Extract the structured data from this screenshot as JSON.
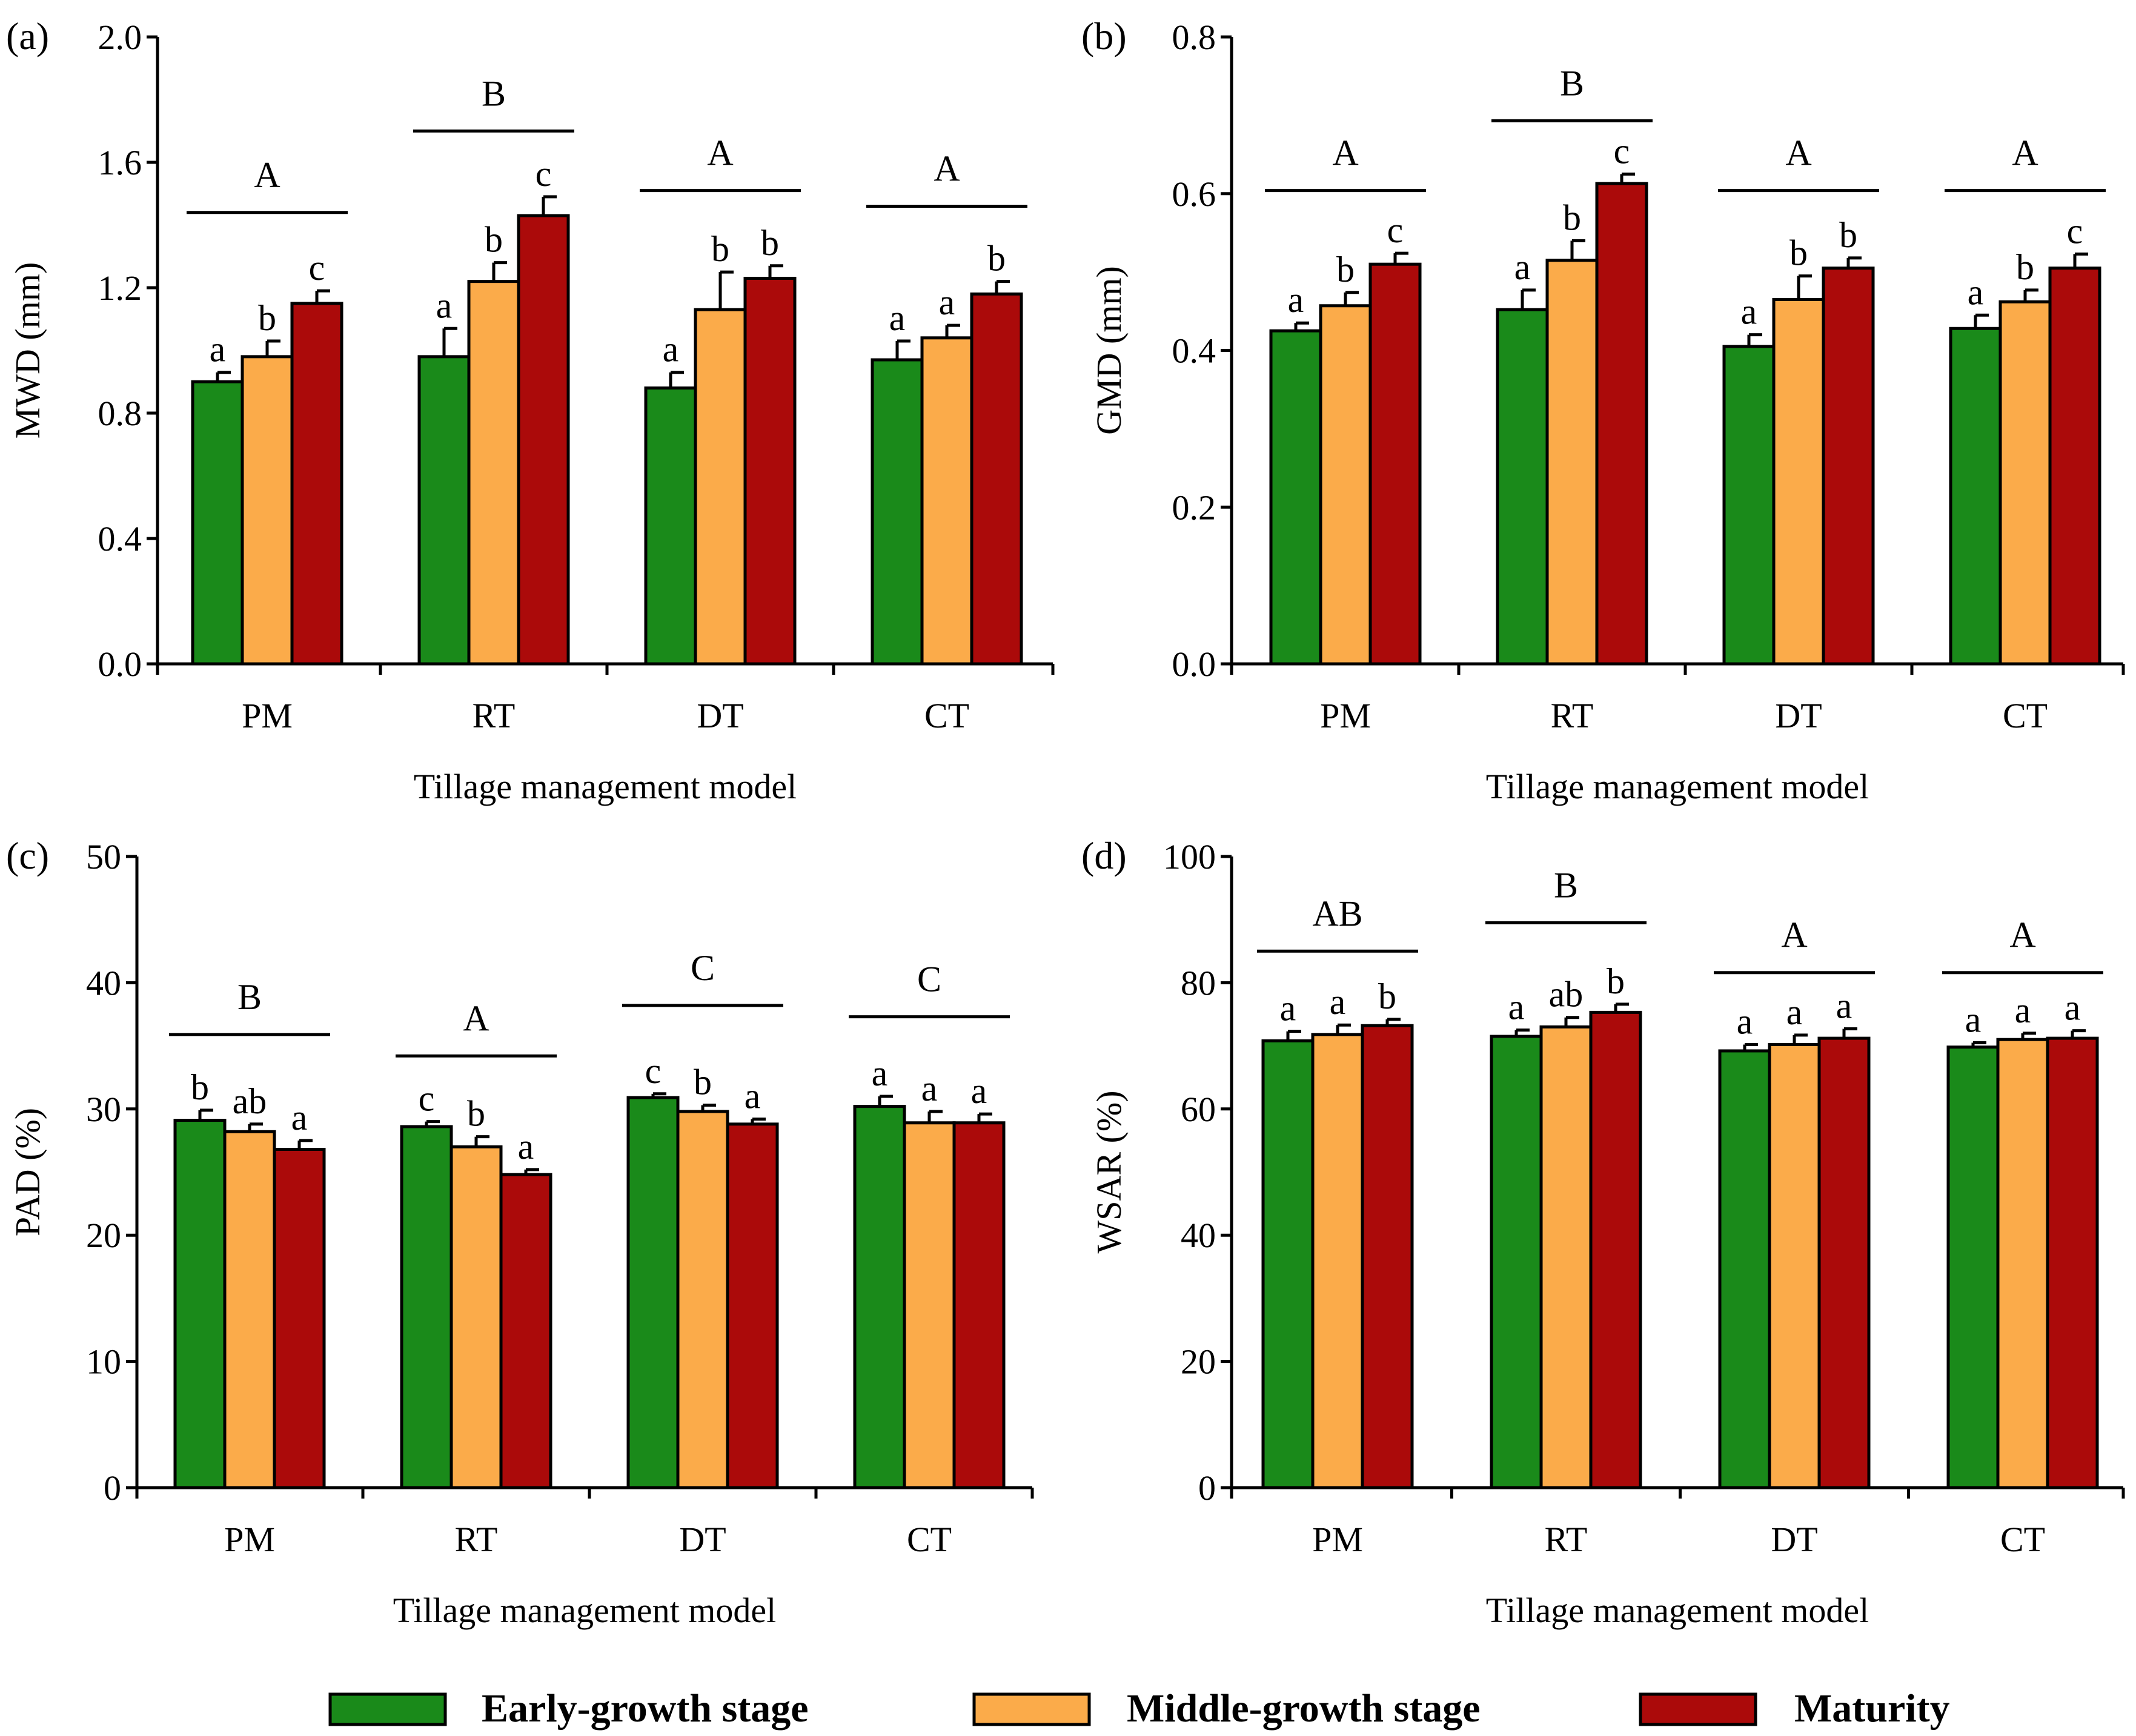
{
  "colors": {
    "early": "#1a8a1a",
    "middle": "#fbab4a",
    "maturity": "#ab0a0a",
    "axis": "#000000"
  },
  "legend": {
    "early": "Early-growth stage",
    "middle": "Middle-growth stage",
    "maturity": "Maturity"
  },
  "chart_data": [
    {
      "panel": "(a)",
      "type": "bar",
      "ylabel": "MWD (mm)",
      "xlabel": "Tillage management model",
      "ylim": [
        0,
        2.0
      ],
      "yticks": [
        0.0,
        0.4,
        0.8,
        1.2,
        1.6,
        2.0
      ],
      "ytick_labels": [
        "0.0",
        "0.4",
        "0.8",
        "1.2",
        "1.6",
        "2.0"
      ],
      "categories": [
        "PM",
        "RT",
        "DT",
        "CT"
      ],
      "series": [
        {
          "name": "Early-growth stage",
          "values": [
            0.9,
            0.98,
            0.88,
            0.97
          ],
          "errors": [
            0.03,
            0.09,
            0.05,
            0.06
          ],
          "letters": [
            "a",
            "a",
            "a",
            "a"
          ]
        },
        {
          "name": "Middle-growth stage",
          "values": [
            0.98,
            1.22,
            1.13,
            1.04
          ],
          "errors": [
            0.05,
            0.06,
            0.12,
            0.04
          ],
          "letters": [
            "b",
            "b",
            "b",
            "a"
          ]
        },
        {
          "name": "Maturity",
          "values": [
            1.15,
            1.43,
            1.23,
            1.18
          ],
          "errors": [
            0.04,
            0.06,
            0.04,
            0.04
          ],
          "letters": [
            "c",
            "c",
            "b",
            "b"
          ]
        }
      ],
      "group_letters": [
        "A",
        "B",
        "A",
        "A"
      ],
      "group_line_values": [
        1.44,
        1.7,
        1.51,
        1.46
      ]
    },
    {
      "panel": "(b)",
      "type": "bar",
      "ylabel": "GMD (mm)",
      "xlabel": "Tillage management model",
      "ylim": [
        0,
        0.8
      ],
      "yticks": [
        0.0,
        0.2,
        0.4,
        0.6,
        0.8
      ],
      "ytick_labels": [
        "0.0",
        "0.2",
        "0.4",
        "0.6",
        "0.8"
      ],
      "categories": [
        "PM",
        "RT",
        "DT",
        "CT"
      ],
      "series": [
        {
          "name": "Early-growth stage",
          "values": [
            0.425,
            0.452,
            0.405,
            0.428
          ],
          "errors": [
            0.01,
            0.025,
            0.015,
            0.017
          ],
          "letters": [
            "a",
            "a",
            "a",
            "a"
          ]
        },
        {
          "name": "Middle-growth stage",
          "values": [
            0.457,
            0.515,
            0.465,
            0.462
          ],
          "errors": [
            0.017,
            0.025,
            0.03,
            0.015
          ],
          "letters": [
            "b",
            "b",
            "b",
            "b"
          ]
        },
        {
          "name": "Maturity",
          "values": [
            0.51,
            0.613,
            0.505,
            0.505
          ],
          "errors": [
            0.014,
            0.012,
            0.013,
            0.018
          ],
          "letters": [
            "c",
            "c",
            "b",
            "c"
          ]
        }
      ],
      "group_letters": [
        "A",
        "B",
        "A",
        "A"
      ],
      "group_line_values": [
        0.604,
        0.693,
        0.604,
        0.604
      ]
    },
    {
      "panel": "(c)",
      "type": "bar",
      "ylabel": "PAD (%)",
      "xlabel": "Tillage management model",
      "ylim": [
        0,
        50
      ],
      "yticks": [
        0,
        10,
        20,
        30,
        40,
        50
      ],
      "ytick_labels": [
        "0",
        "10",
        "20",
        "30",
        "40",
        "50"
      ],
      "categories": [
        "PM",
        "RT",
        "DT",
        "CT"
      ],
      "series": [
        {
          "name": "Early-growth stage",
          "values": [
            29.1,
            28.6,
            30.9,
            30.2
          ],
          "errors": [
            0.8,
            0.4,
            0.3,
            0.8
          ],
          "letters": [
            "b",
            "c",
            "c",
            "a"
          ]
        },
        {
          "name": "Middle-growth stage",
          "values": [
            28.2,
            27.0,
            29.8,
            28.9
          ],
          "errors": [
            0.6,
            0.8,
            0.5,
            0.9
          ],
          "letters": [
            "ab",
            "b",
            "b",
            "a"
          ]
        },
        {
          "name": "Maturity",
          "values": [
            26.8,
            24.8,
            28.8,
            28.9
          ],
          "errors": [
            0.7,
            0.4,
            0.4,
            0.7
          ],
          "letters": [
            "a",
            "a",
            "a",
            "a"
          ]
        }
      ],
      "group_letters": [
        "B",
        "A",
        "C",
        "C"
      ],
      "group_line_values": [
        35.9,
        34.2,
        38.2,
        37.3
      ]
    },
    {
      "panel": "(d)",
      "type": "bar",
      "ylabel": "WSAR (%)",
      "xlabel": "Tillage management model",
      "ylim": [
        0,
        100
      ],
      "yticks": [
        0,
        20,
        40,
        60,
        80,
        100
      ],
      "ytick_labels": [
        "0",
        "20",
        "40",
        "60",
        "80",
        "100"
      ],
      "categories": [
        "PM",
        "RT",
        "DT",
        "CT"
      ],
      "series": [
        {
          "name": "Early-growth stage",
          "values": [
            70.8,
            71.5,
            69.2,
            69.8
          ],
          "errors": [
            1.5,
            1.0,
            1.0,
            0.7
          ],
          "letters": [
            "a",
            "a",
            "a",
            "a"
          ]
        },
        {
          "name": "Middle-growth stage",
          "values": [
            71.8,
            73.0,
            70.2,
            71.0
          ],
          "errors": [
            1.5,
            1.5,
            1.5,
            1.0
          ],
          "letters": [
            "a",
            "ab",
            "a",
            "a"
          ]
        },
        {
          "name": "Maturity",
          "values": [
            73.2,
            75.3,
            71.2,
            71.2
          ],
          "errors": [
            1.0,
            1.3,
            1.5,
            1.2
          ],
          "letters": [
            "b",
            "b",
            "a",
            "a"
          ]
        }
      ],
      "group_letters": [
        "AB",
        "B",
        "A",
        "A"
      ],
      "group_line_values": [
        85.0,
        89.5,
        81.6,
        81.6
      ]
    }
  ]
}
